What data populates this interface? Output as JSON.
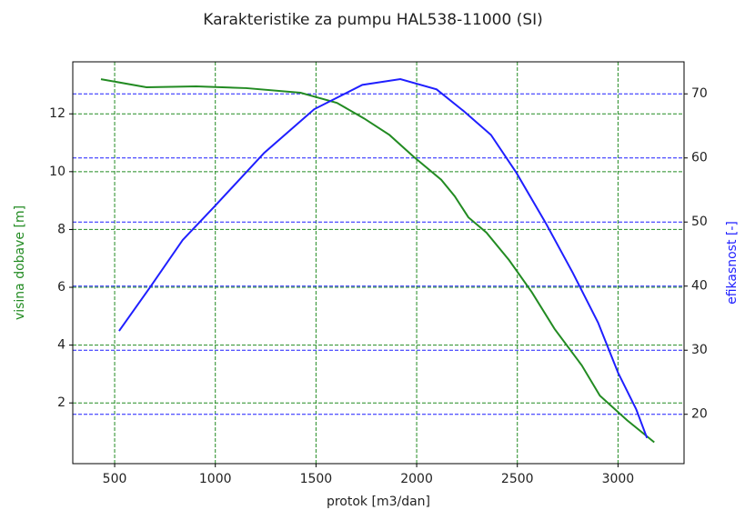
{
  "chart_data": {
    "type": "line",
    "title": "Karakteristike za pumpu HAL538-11000 (SI)",
    "x_label": "protok [m3/dan]",
    "y_label": "visina dobave [m]",
    "y2_label": "efikasnost [-]",
    "xlim": [
      292,
      3328
    ],
    "xticks": [
      500,
      1000,
      1500,
      2000,
      2500,
      3000
    ],
    "ylim": [
      -0.1,
      13.8
    ],
    "yticks": [
      2,
      4,
      6,
      8,
      10,
      12
    ],
    "y2lim": [
      12.3,
      75
    ],
    "y2ticks": [
      20,
      30,
      40,
      50,
      60,
      70
    ],
    "grid": true,
    "series": [
      {
        "name": "visina dobave",
        "color": "#228b22",
        "x": [
          432,
          658,
          905,
          1153,
          1423,
          1604,
          1739,
          1865,
          1986,
          2122,
          2189,
          2257,
          2347,
          2459,
          2572,
          2685,
          2820,
          2910,
          3045,
          3180
        ],
        "values": [
          13.2,
          12.92,
          12.95,
          12.89,
          12.73,
          12.38,
          11.84,
          11.27,
          10.51,
          9.72,
          9.15,
          8.42,
          7.89,
          6.94,
          5.83,
          4.56,
          3.3,
          2.25,
          1.4,
          0.64
        ]
      },
      {
        "name": "efikasnost",
        "color": "#1f1fff",
        "axis": "y2",
        "x": [
          522,
          680,
          838,
          995,
          1243,
          1491,
          1730,
          1919,
          2099,
          2234,
          2369,
          2495,
          2640,
          2775,
          2901,
          3000,
          3090,
          3144
        ],
        "values": [
          33.0,
          40.0,
          47.2,
          52.4,
          60.8,
          67.6,
          71.4,
          72.3,
          70.7,
          67.3,
          63.6,
          57.7,
          49.9,
          42.1,
          34.3,
          26.5,
          20.8,
          16.3
        ]
      }
    ]
  }
}
